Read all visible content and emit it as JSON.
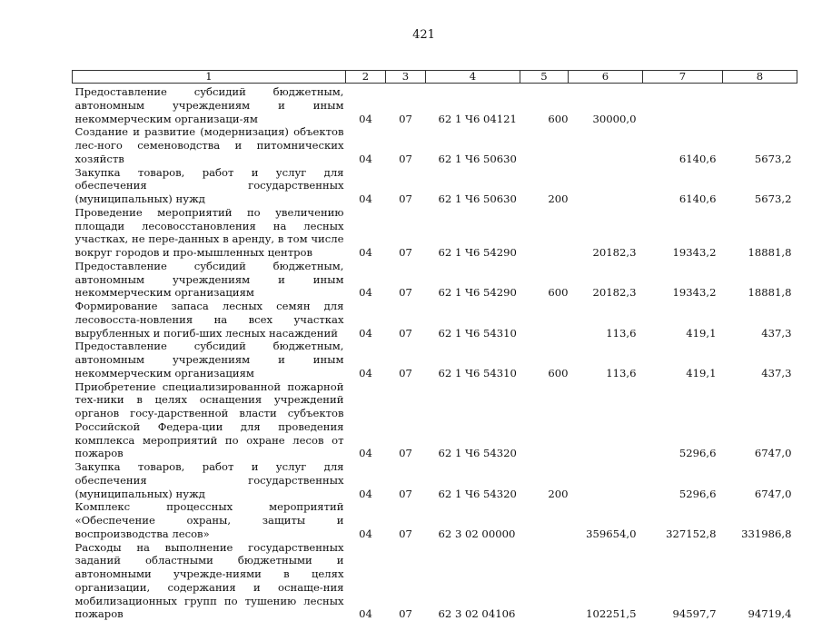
{
  "page_number": "421",
  "table": {
    "headers": [
      "1",
      "2",
      "3",
      "4",
      "5",
      "6",
      "7",
      "8"
    ],
    "rows": [
      {
        "name": "Предоставление субсидий бюджетным, автономным учреждениям и иным некоммерческим организаци-ям",
        "rz": "04",
        "pr": "07",
        "csr": "62 1 Ч6 04121",
        "vr": "600",
        "y1": "30000,0",
        "y2": "",
        "y3": ""
      },
      {
        "name": "Создание и развитие (модернизация) объектов лес-ного семеноводства и питомнических хозяйств",
        "rz": "04",
        "pr": "07",
        "csr": "62 1 Ч6 50630",
        "vr": "",
        "y1": "",
        "y2": "6140,6",
        "y3": "5673,2"
      },
      {
        "name": "Закупка товаров, работ и услуг для обеспечения государственных (муниципальных) нужд",
        "rz": "04",
        "pr": "07",
        "csr": "62 1 Ч6 50630",
        "vr": "200",
        "y1": "",
        "y2": "6140,6",
        "y3": "5673,2"
      },
      {
        "name": "Проведение мероприятий по увеличению площади лесовосстановления на лесных участках, не пере-данных в аренду, в том числе вокруг городов и про-мышленных центров",
        "rz": "04",
        "pr": "07",
        "csr": "62 1 Ч6 54290",
        "vr": "",
        "y1": "20182,3",
        "y2": "19343,2",
        "y3": "18881,8"
      },
      {
        "name": "Предоставление субсидий бюджетным, автономным учреждениям и иным некоммерческим организациям",
        "rz": "04",
        "pr": "07",
        "csr": "62 1 Ч6 54290",
        "vr": "600",
        "y1": "20182,3",
        "y2": "19343,2",
        "y3": "18881,8"
      },
      {
        "name": "Формирование запаса лесных семян для лесовосста-новления на всех участках вырубленных и погиб-ших лесных насаждений",
        "rz": "04",
        "pr": "07",
        "csr": "62 1 Ч6 54310",
        "vr": "",
        "y1": "113,6",
        "y2": "419,1",
        "y3": "437,3"
      },
      {
        "name": "Предоставление субсидий бюджетным, автономным учреждениям и иным некоммерческим организациям",
        "rz": "04",
        "pr": "07",
        "csr": "62 1 Ч6 54310",
        "vr": "600",
        "y1": "113,6",
        "y2": "419,1",
        "y3": "437,3"
      },
      {
        "name": "Приобретение специализированной пожарной тех-ники в целях оснащения учреждений органов госу-дарственной власти субъектов Российской Федера-ции для проведения комплекса мероприятий по охране лесов от пожаров",
        "rz": "04",
        "pr": "07",
        "csr": "62 1 Ч6 54320",
        "vr": "",
        "y1": "",
        "y2": "5296,6",
        "y3": "6747,0"
      },
      {
        "name": "Закупка товаров, работ и услуг для обеспечения государственных (муниципальных) нужд",
        "rz": "04",
        "pr": "07",
        "csr": "62 1 Ч6 54320",
        "vr": "200",
        "y1": "",
        "y2": "5296,6",
        "y3": "6747,0"
      },
      {
        "name": "Комплекс процессных мероприятий «Обеспечение охраны, защиты и воспроизводства лесов»",
        "rz": "04",
        "pr": "07",
        "csr": "62 3 02 00000",
        "vr": "",
        "y1": "359654,0",
        "y2": "327152,8",
        "y3": "331986,8"
      },
      {
        "name": "Расходы на выполнение государственных заданий областными бюджетными и автономными учрежде-ниями в целях организации, содержания и оснаще-ния мобилизационных групп по тушению лесных пожаров",
        "rz": "04",
        "pr": "07",
        "csr": "62 3 02 04106",
        "vr": "",
        "y1": "102251,5",
        "y2": "94597,7",
        "y3": "94719,4"
      }
    ]
  }
}
